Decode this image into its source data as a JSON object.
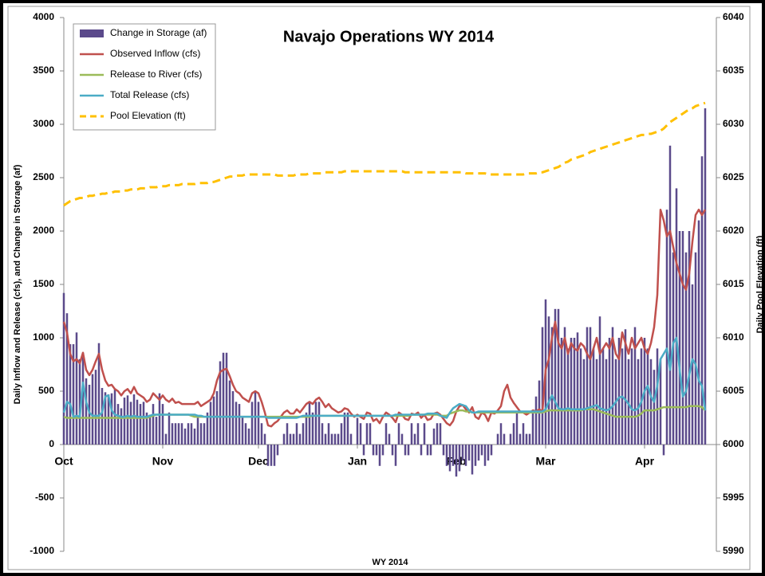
{
  "chart_data": {
    "type": "combo",
    "title": "Navajo Operations WY 2014",
    "xlabel": "WY 2014",
    "ylabel": "Daily Inflow and Release (cfs), and Change in Storage (af)",
    "y2label": "Daily Pool Elevation (ft)",
    "legend": "upper left",
    "grid": false,
    "ylim": [
      -1000,
      4000
    ],
    "yticks": [
      -1000,
      -500,
      0,
      500,
      1000,
      1500,
      2000,
      2500,
      3000,
      3500,
      4000
    ],
    "y2lim": [
      5990,
      6040
    ],
    "y2ticks": [
      5990,
      5995,
      6000,
      6005,
      6010,
      6015,
      6020,
      6025,
      6030,
      6035,
      6040
    ],
    "categories": [
      "Oct",
      null,
      null,
      null,
      null,
      null,
      null,
      null,
      null,
      null,
      null,
      null,
      null,
      null,
      null,
      null,
      null,
      null,
      null,
      null,
      null,
      null,
      null,
      null,
      null,
      null,
      null,
      null,
      null,
      null,
      null,
      "Nov",
      null,
      null,
      null,
      null,
      null,
      null,
      null,
      null,
      null,
      null,
      null,
      null,
      null,
      null,
      null,
      null,
      null,
      null,
      null,
      null,
      null,
      null,
      null,
      null,
      null,
      null,
      null,
      null,
      null,
      "Dec",
      null,
      null,
      null,
      null,
      null,
      null,
      null,
      null,
      null,
      null,
      null,
      null,
      null,
      null,
      null,
      null,
      null,
      null,
      null,
      null,
      null,
      null,
      null,
      null,
      null,
      null,
      null,
      null,
      null,
      null,
      "Jan",
      null,
      null,
      null,
      null,
      null,
      null,
      null,
      null,
      null,
      null,
      null,
      null,
      null,
      null,
      null,
      null,
      null,
      null,
      null,
      null,
      null,
      null,
      null,
      null,
      null,
      null,
      null,
      null,
      null,
      null,
      "Feb",
      null,
      null,
      null,
      null,
      null,
      null,
      null,
      null,
      null,
      null,
      null,
      null,
      null,
      null,
      null,
      null,
      null,
      null,
      null,
      null,
      null,
      null,
      null,
      null,
      null,
      null,
      null,
      "Mar",
      null,
      null,
      null,
      null,
      null,
      null,
      null,
      null,
      null,
      null,
      null,
      null,
      null,
      null,
      null,
      null,
      null,
      null,
      null,
      null,
      null,
      null,
      null,
      null,
      null,
      null,
      null,
      null,
      null,
      null,
      "Apr",
      null,
      null,
      null,
      null,
      null,
      null,
      null,
      null,
      null,
      null,
      null,
      null,
      null,
      null,
      null,
      null,
      null,
      null,
      null
    ],
    "series": [
      {
        "name": "Change in Storage (af)",
        "type": "bar",
        "color": "#5b4a8b",
        "values": [
          1420,
          1230,
          940,
          940,
          1050,
          800,
          860,
          620,
          560,
          660,
          700,
          950,
          530,
          490,
          470,
          480,
          520,
          380,
          340,
          440,
          460,
          400,
          470,
          420,
          380,
          400,
          300,
          280,
          380,
          260,
          480,
          380,
          100,
          300,
          200,
          200,
          200,
          200,
          150,
          200,
          200,
          150,
          250,
          200,
          200,
          300,
          400,
          450,
          500,
          780,
          860,
          860,
          600,
          500,
          400,
          380,
          250,
          200,
          150,
          400,
          500,
          400,
          200,
          100,
          -200,
          -200,
          -200,
          -100,
          0,
          100,
          200,
          100,
          100,
          200,
          100,
          200,
          300,
          400,
          300,
          400,
          400,
          200,
          100,
          200,
          100,
          100,
          100,
          200,
          300,
          300,
          100,
          0,
          250,
          200,
          -100,
          200,
          200,
          -100,
          -100,
          -200,
          -100,
          200,
          100,
          -100,
          -200,
          200,
          100,
          -100,
          -100,
          200,
          100,
          200,
          -100,
          200,
          -100,
          -100,
          150,
          200,
          200,
          -100,
          -200,
          -250,
          -200,
          -300,
          -250,
          -150,
          -200,
          -150,
          -280,
          -200,
          -150,
          -100,
          -200,
          -150,
          -100,
          0,
          100,
          200,
          100,
          0,
          100,
          200,
          300,
          100,
          200,
          100,
          100,
          300,
          450,
          600,
          1100,
          1360,
          1200,
          1100,
          1270,
          1270,
          1000,
          1100,
          900,
          1000,
          1000,
          1050,
          900,
          800,
          1100,
          1100,
          900,
          800,
          1200,
          900,
          800,
          1000,
          1100,
          800,
          1000,
          900,
          1080,
          800,
          900,
          1100,
          800,
          900,
          1000,
          900,
          800,
          700,
          900,
          800,
          -100,
          2200,
          2800,
          1800,
          2400,
          2000,
          2000,
          1800,
          2000,
          1500,
          1800,
          2100,
          2700,
          3150
        ]
      },
      {
        "name": "Observed Inflow (cfs)",
        "type": "line",
        "color": "#c0504d",
        "values": [
          1150,
          1050,
          850,
          780,
          800,
          760,
          860,
          700,
          650,
          700,
          780,
          850,
          700,
          600,
          550,
          560,
          520,
          500,
          460,
          500,
          520,
          480,
          540,
          480,
          460,
          440,
          400,
          420,
          480,
          450,
          420,
          460,
          420,
          400,
          430,
          390,
          400,
          380,
          380,
          380,
          380,
          380,
          400,
          360,
          380,
          400,
          420,
          480,
          600,
          680,
          700,
          710,
          640,
          560,
          500,
          480,
          440,
          420,
          400,
          480,
          500,
          480,
          400,
          300,
          180,
          170,
          200,
          220,
          260,
          300,
          320,
          290,
          290,
          330,
          300,
          340,
          380,
          400,
          380,
          420,
          440,
          400,
          350,
          380,
          340,
          320,
          300,
          310,
          340,
          330,
          290,
          260,
          280,
          260,
          240,
          300,
          290,
          220,
          240,
          200,
          260,
          300,
          280,
          250,
          210,
          300,
          280,
          240,
          230,
          290,
          280,
          300,
          250,
          280,
          230,
          240,
          290,
          300,
          280,
          240,
          200,
          180,
          220,
          310,
          360,
          370,
          330,
          300,
          350,
          260,
          240,
          300,
          280,
          220,
          300,
          290,
          320,
          360,
          500,
          560,
          440,
          390,
          350,
          310,
          300,
          280,
          300,
          320,
          310,
          330,
          310,
          700,
          800,
          1000,
          1150,
          950,
          900,
          1000,
          850,
          950,
          900,
          880,
          950,
          920,
          850,
          800,
          900,
          1000,
          850,
          900,
          950,
          900,
          1000,
          850,
          800,
          1050,
          950,
          850,
          1000,
          900,
          950,
          1000,
          900,
          850,
          950,
          1100,
          1400,
          2200,
          2100,
          1950,
          2000,
          1850,
          1700,
          1600,
          1500,
          1450,
          1600,
          1900,
          2150,
          2200,
          2150,
          2200
        ]
      },
      {
        "name": "Release to River (cfs)",
        "type": "line",
        "color": "#9bbb59",
        "values": [
          260,
          250,
          250,
          250,
          250,
          250,
          250,
          250,
          250,
          250,
          250,
          250,
          250,
          250,
          250,
          250,
          250,
          250,
          250,
          250,
          250,
          250,
          250,
          250,
          250,
          250,
          250,
          260,
          270,
          280,
          280,
          280,
          280,
          280,
          280,
          280,
          280,
          280,
          280,
          280,
          270,
          260,
          260,
          260,
          260,
          260,
          260,
          260,
          260,
          260,
          260,
          260,
          260,
          260,
          260,
          260,
          260,
          260,
          260,
          260,
          260,
          260,
          260,
          260,
          260,
          260,
          260,
          260,
          260,
          260,
          260,
          260,
          260,
          260,
          260,
          260,
          260,
          260,
          270,
          270,
          270,
          270,
          270,
          270,
          270,
          270,
          270,
          270,
          270,
          270,
          270,
          270,
          270,
          270,
          270,
          270,
          270,
          270,
          270,
          270,
          270,
          270,
          270,
          270,
          270,
          270,
          270,
          270,
          270,
          280,
          280,
          280,
          280,
          280,
          280,
          280,
          280,
          280,
          270,
          270,
          270,
          290,
          300,
          310,
          320,
          320,
          310,
          310,
          300,
          300,
          300,
          300,
          300,
          300,
          300,
          300,
          300,
          300,
          300,
          300,
          300,
          300,
          300,
          300,
          300,
          300,
          300,
          300,
          300,
          300,
          300,
          310,
          320,
          320,
          320,
          320,
          320,
          320,
          320,
          320,
          320,
          320,
          320,
          330,
          330,
          330,
          330,
          320,
          310,
          300,
          290,
          280,
          270,
          260,
          260,
          260,
          260,
          260,
          260,
          260,
          270,
          290,
          320,
          320,
          320,
          320,
          330,
          340,
          350,
          350,
          350,
          350,
          350,
          350,
          350,
          350,
          360,
          360,
          360,
          360,
          350,
          320
        ]
      },
      {
        "name": "Total Release (cfs)",
        "type": "line",
        "color": "#4bacc6",
        "values": [
          300,
          400,
          380,
          260,
          270,
          260,
          580,
          400,
          300,
          270,
          270,
          270,
          300,
          450,
          460,
          320,
          280,
          270,
          260,
          260,
          270,
          260,
          270,
          260,
          260,
          260,
          260,
          270,
          280,
          280,
          280,
          280,
          280,
          280,
          280,
          280,
          280,
          280,
          280,
          280,
          280,
          280,
          270,
          270,
          260,
          260,
          260,
          260,
          260,
          260,
          260,
          260,
          260,
          260,
          260,
          260,
          260,
          260,
          260,
          260,
          260,
          260,
          260,
          260,
          250,
          250,
          250,
          250,
          250,
          250,
          250,
          250,
          250,
          250,
          260,
          270,
          270,
          270,
          270,
          270,
          270,
          270,
          270,
          270,
          270,
          270,
          270,
          270,
          270,
          270,
          270,
          270,
          270,
          270,
          270,
          270,
          270,
          270,
          270,
          270,
          270,
          270,
          270,
          270,
          280,
          280,
          280,
          280,
          280,
          280,
          280,
          280,
          280,
          280,
          290,
          290,
          290,
          290,
          270,
          260,
          250,
          300,
          340,
          360,
          380,
          370,
          360,
          320,
          300,
          300,
          310,
          310,
          310,
          310,
          310,
          310,
          310,
          310,
          310,
          310,
          310,
          310,
          310,
          310,
          310,
          310,
          310,
          310,
          310,
          310,
          310,
          330,
          400,
          460,
          400,
          340,
          330,
          330,
          340,
          330,
          330,
          330,
          330,
          330,
          340,
          350,
          360,
          370,
          340,
          330,
          320,
          330,
          360,
          400,
          440,
          450,
          420,
          380,
          330,
          320,
          340,
          400,
          500,
          550,
          450,
          400,
          550,
          800,
          850,
          900,
          700,
          950,
          1000,
          700,
          450,
          500,
          650,
          800,
          750,
          600,
          550,
          320
        ]
      },
      {
        "name": "Pool Elevation (ft)",
        "type": "dashed",
        "axis": "y2",
        "color": "#ffc000",
        "values": [
          6022.4,
          6022.6,
          6022.8,
          6022.9,
          6023.0,
          6023.1,
          6023.1,
          6023.2,
          6023.3,
          6023.3,
          6023.4,
          6023.4,
          6023.5,
          6023.5,
          6023.6,
          6023.6,
          6023.7,
          6023.7,
          6023.7,
          6023.8,
          6023.8,
          6023.9,
          6023.9,
          6023.9,
          6024.0,
          6024.0,
          6024.0,
          6024.1,
          6024.1,
          6024.1,
          6024.2,
          6024.2,
          6024.2,
          6024.3,
          6024.3,
          6024.3,
          6024.3,
          6024.4,
          6024.4,
          6024.4,
          6024.4,
          6024.4,
          6024.5,
          6024.5,
          6024.5,
          6024.5,
          6024.6,
          6024.6,
          6024.7,
          6024.8,
          6024.9,
          6025.0,
          6025.1,
          6025.1,
          6025.2,
          6025.2,
          6025.2,
          6025.3,
          6025.3,
          6025.3,
          6025.3,
          6025.3,
          6025.3,
          6025.3,
          6025.3,
          6025.3,
          6025.3,
          6025.2,
          6025.2,
          6025.2,
          6025.2,
          6025.2,
          6025.2,
          6025.3,
          6025.3,
          6025.3,
          6025.3,
          6025.4,
          6025.4,
          6025.4,
          6025.4,
          6025.4,
          6025.5,
          6025.5,
          6025.5,
          6025.5,
          6025.5,
          6025.5,
          6025.6,
          6025.6,
          6025.6,
          6025.6,
          6025.6,
          6025.6,
          6025.6,
          6025.6,
          6025.6,
          6025.6,
          6025.6,
          6025.6,
          6025.6,
          6025.6,
          6025.6,
          6025.6,
          6025.6,
          6025.6,
          6025.6,
          6025.5,
          6025.5,
          6025.5,
          6025.5,
          6025.5,
          6025.5,
          6025.5,
          6025.5,
          6025.5,
          6025.5,
          6025.5,
          6025.5,
          6025.5,
          6025.5,
          6025.5,
          6025.5,
          6025.5,
          6025.5,
          6025.5,
          6025.4,
          6025.4,
          6025.4,
          6025.4,
          6025.4,
          6025.4,
          6025.4,
          6025.3,
          6025.3,
          6025.3,
          6025.3,
          6025.3,
          6025.3,
          6025.3,
          6025.3,
          6025.3,
          6025.3,
          6025.3,
          6025.3,
          6025.4,
          6025.4,
          6025.4,
          6025.4,
          6025.5,
          6025.5,
          6025.6,
          6025.7,
          6025.8,
          6025.9,
          6026.0,
          6026.2,
          6026.4,
          6026.5,
          6026.7,
          6026.8,
          6026.9,
          6027.0,
          6027.1,
          6027.2,
          6027.4,
          6027.5,
          6027.6,
          6027.7,
          6027.8,
          6027.9,
          6028.0,
          6028.1,
          6028.2,
          6028.3,
          6028.4,
          6028.5,
          6028.6,
          6028.7,
          6028.8,
          6028.9,
          6029.0,
          6029.0,
          6029.1,
          6029.1,
          6029.2,
          6029.3,
          6029.4,
          6029.6,
          6029.9,
          6030.2,
          6030.4,
          6030.6,
          6030.8,
          6031.0,
          6031.2,
          6031.4,
          6031.5,
          6031.7,
          6031.8,
          6031.9,
          6032.0
        ]
      }
    ]
  }
}
